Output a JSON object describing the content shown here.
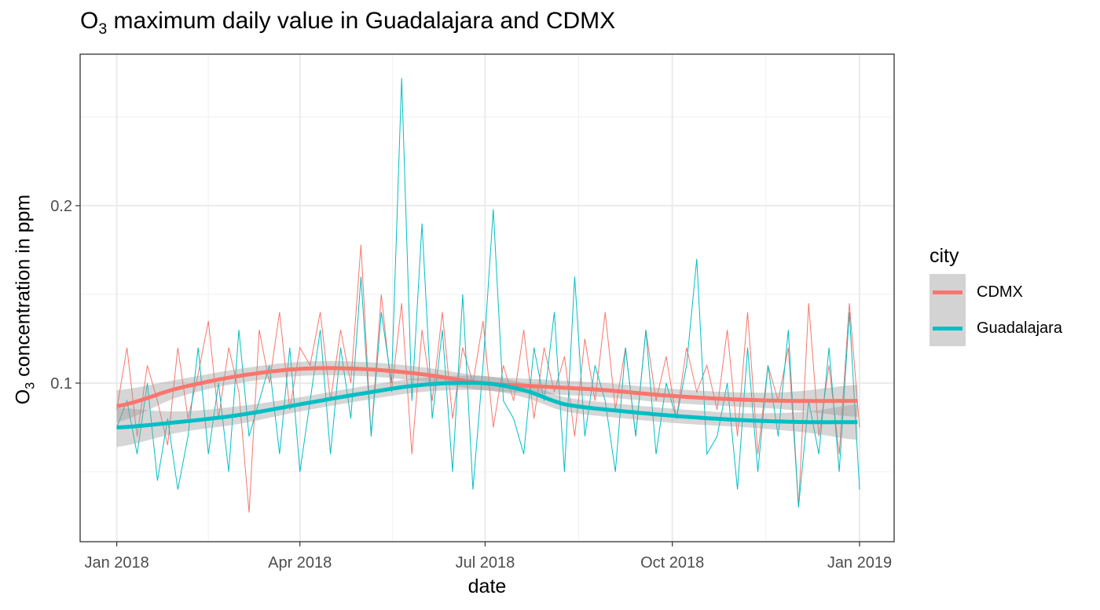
{
  "title": {
    "prefix": "O",
    "sub": "3",
    "rest": " maximum daily value in Guadalajara and CDMX"
  },
  "chart_data": {
    "type": "line",
    "title": "O3 maximum daily value in Guadalajara and CDMX",
    "xlabel": "date",
    "ylabel": {
      "prefix": "O",
      "sub": "3",
      "rest": " concentration in ppm"
    },
    "x_unit": "days since 2018-01-01",
    "xlim": [
      -18,
      382
    ],
    "ylim": [
      0.0106,
      0.2854
    ],
    "x_ticks": [
      {
        "day": 0,
        "label": "Jan 2018"
      },
      {
        "day": 90,
        "label": "Apr 2018"
      },
      {
        "day": 181,
        "label": "Jul 2018"
      },
      {
        "day": 273,
        "label": "Oct 2018"
      },
      {
        "day": 365,
        "label": "Jan 2019"
      }
    ],
    "y_ticks": [
      {
        "value": 0.1,
        "label": "0.1"
      },
      {
        "value": 0.2,
        "label": "0.2"
      }
    ],
    "y_minor": [
      0.05,
      0.15,
      0.25
    ],
    "grid": true,
    "legend": {
      "title": "city",
      "placement": "right"
    },
    "sample_step_days": 5,
    "series": [
      {
        "name": "CDMX",
        "color": "#F8766D",
        "values": [
          0.085,
          0.12,
          0.07,
          0.11,
          0.09,
          0.065,
          0.12,
          0.08,
          0.105,
          0.135,
          0.08,
          0.12,
          0.095,
          0.027,
          0.13,
          0.1,
          0.14,
          0.085,
          0.12,
          0.11,
          0.14,
          0.09,
          0.13,
          0.1,
          0.178,
          0.07,
          0.15,
          0.095,
          0.145,
          0.06,
          0.13,
          0.09,
          0.14,
          0.08,
          0.12,
          0.1,
          0.135,
          0.075,
          0.11,
          0.09,
          0.13,
          0.08,
          0.12,
          0.095,
          0.115,
          0.07,
          0.125,
          0.09,
          0.14,
          0.085,
          0.12,
          0.07,
          0.13,
          0.09,
          0.115,
          0.08,
          0.12,
          0.095,
          0.11,
          0.085,
          0.13,
          0.07,
          0.14,
          0.06,
          0.11,
          0.09,
          0.12,
          0.03,
          0.145,
          0.07,
          0.11,
          0.06,
          0.145,
          0.075
        ],
        "smooth": {
          "days": [
            0,
            30,
            60,
            90,
            120,
            150,
            180,
            210,
            240,
            270,
            300,
            330,
            364
          ],
          "values": [
            0.087,
            0.097,
            0.104,
            0.108,
            0.108,
            0.105,
            0.1,
            0.098,
            0.096,
            0.093,
            0.091,
            0.09,
            0.09
          ],
          "se": [
            0.009,
            0.005,
            0.004,
            0.004,
            0.004,
            0.004,
            0.004,
            0.004,
            0.004,
            0.004,
            0.004,
            0.005,
            0.009
          ]
        }
      },
      {
        "name": "Guadalajara",
        "color": "#00BFC4",
        "values": [
          0.075,
          0.09,
          0.06,
          0.1,
          0.045,
          0.08,
          0.04,
          0.07,
          0.12,
          0.06,
          0.1,
          0.05,
          0.13,
          0.07,
          0.09,
          0.11,
          0.06,
          0.12,
          0.05,
          0.09,
          0.13,
          0.06,
          0.12,
          0.08,
          0.16,
          0.07,
          0.14,
          0.1,
          0.272,
          0.09,
          0.19,
          0.08,
          0.13,
          0.05,
          0.15,
          0.04,
          0.11,
          0.198,
          0.09,
          0.08,
          0.06,
          0.12,
          0.09,
          0.14,
          0.05,
          0.16,
          0.07,
          0.11,
          0.09,
          0.05,
          0.12,
          0.07,
          0.13,
          0.06,
          0.1,
          0.08,
          0.11,
          0.17,
          0.06,
          0.07,
          0.1,
          0.04,
          0.12,
          0.05,
          0.11,
          0.07,
          0.13,
          0.03,
          0.09,
          0.06,
          0.12,
          0.05,
          0.14,
          0.04
        ],
        "smooth": {
          "days": [
            0,
            30,
            60,
            90,
            120,
            150,
            180,
            200,
            220,
            250,
            280,
            310,
            340,
            364
          ],
          "values": [
            0.075,
            0.078,
            0.082,
            0.088,
            0.094,
            0.099,
            0.1,
            0.096,
            0.088,
            0.084,
            0.081,
            0.079,
            0.078,
            0.078
          ],
          "se": [
            0.011,
            0.006,
            0.005,
            0.004,
            0.004,
            0.004,
            0.004,
            0.004,
            0.004,
            0.004,
            0.004,
            0.004,
            0.006,
            0.01
          ]
        }
      }
    ]
  }
}
